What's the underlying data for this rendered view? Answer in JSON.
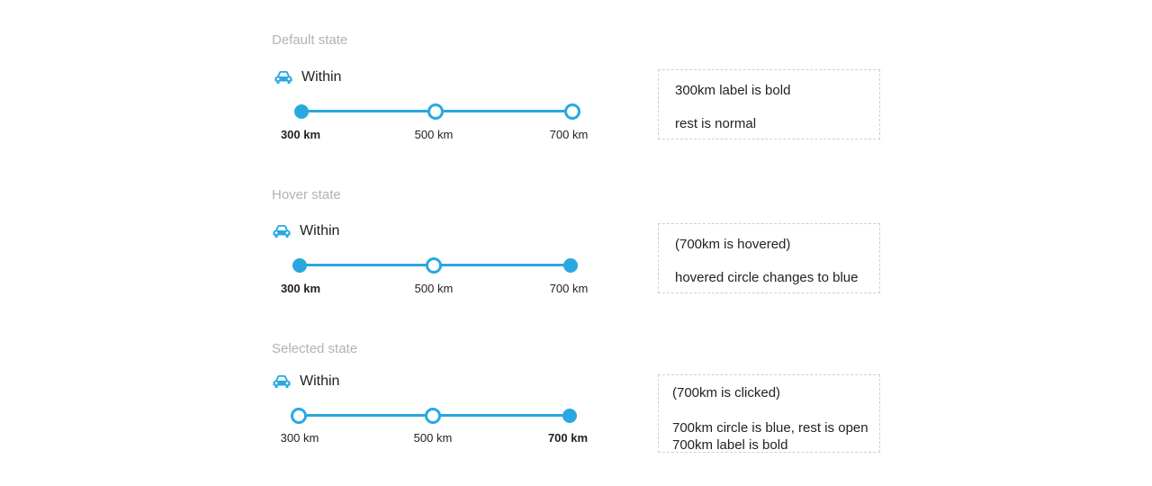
{
  "accent_color": "#29a8e0",
  "sections": {
    "default": {
      "title": "Default state",
      "within": "Within",
      "icon": "car-icon",
      "labels": [
        "300 km",
        "500 km",
        "700 km"
      ],
      "note": [
        "300km label is bold",
        "rest is normal"
      ]
    },
    "hover": {
      "title": "Hover state",
      "within": "Within",
      "icon": "car-icon",
      "labels": [
        "300 km",
        "500 km",
        "700 km"
      ],
      "note": [
        "(700km is hovered)",
        "hovered circle changes to blue"
      ]
    },
    "selected": {
      "title": "Selected state",
      "within": "Within",
      "icon": "car-icon",
      "labels": [
        "300 km",
        "500 km",
        "700 km"
      ],
      "note": [
        "(700km is clicked)",
        "700km circle is blue, rest is open",
        "700km label is bold"
      ]
    }
  }
}
